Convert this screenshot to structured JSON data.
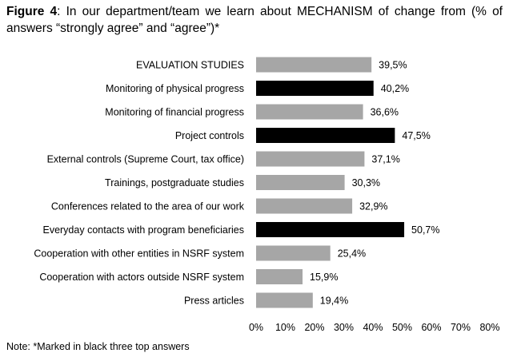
{
  "figure": {
    "label": "Figure 4",
    "title": ": In our department/team we learn about MECHANISM of change from (% of answers “strongly agree” and “agree”)*",
    "note": "Note: *Marked in black three top answers"
  },
  "colors": {
    "gray": "#a6a6a6",
    "black": "#000000"
  },
  "chart_data": {
    "type": "bar",
    "orientation": "horizontal",
    "title": "In our department/team we learn about MECHANISM of change from (% of answers “strongly agree” and “agree”)*",
    "categories": [
      "EVALUATION STUDIES",
      "Monitoring of physical progress",
      "Monitoring of financial progress",
      "Project controls",
      "External controls (Supreme Court, tax office)",
      "Trainings, postgraduate studies",
      "Conferences related to the area of our work",
      "Everyday contacts with program beneficiaries",
      "Cooperation with other entities in NSRF system",
      "Cooperation with actors outside NSRF system",
      "Press articles"
    ],
    "values": [
      39.5,
      40.2,
      36.6,
      47.5,
      37.1,
      30.3,
      32.9,
      50.7,
      25.4,
      15.9,
      19.4
    ],
    "value_labels": [
      "39,5%",
      "40,2%",
      "36,6%",
      "47,5%",
      "37,1%",
      "30,3%",
      "32,9%",
      "50,7%",
      "25,4%",
      "15,9%",
      "19,4%"
    ],
    "highlighted": [
      false,
      true,
      false,
      true,
      false,
      false,
      false,
      true,
      false,
      false,
      false
    ],
    "xlim": [
      0,
      80
    ],
    "xticks": [
      "0%",
      "10%",
      "20%",
      "30%",
      "40%",
      "50%",
      "60%",
      "70%",
      "80%"
    ],
    "grid": false
  }
}
